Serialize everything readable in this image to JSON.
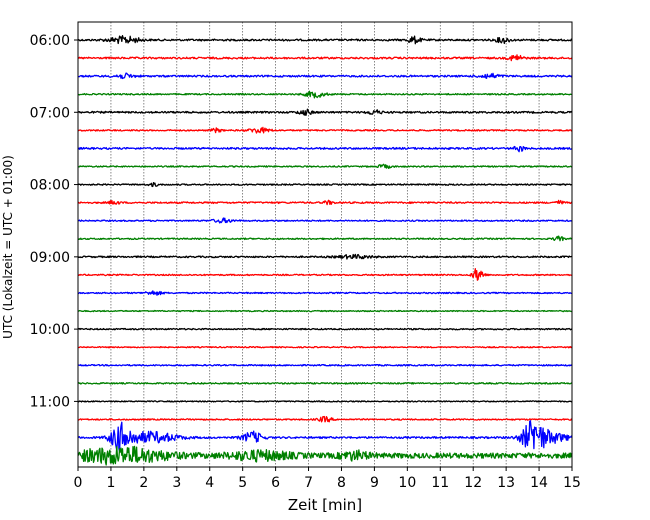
{
  "chart_data": {
    "type": "line",
    "title": "",
    "xlabel": "Zeit  [min]",
    "ylabel": "UTC (Lokalzeit = UTC + 01:00)",
    "xlim": [
      0,
      15
    ],
    "xticks": [
      0,
      1,
      2,
      3,
      4,
      5,
      6,
      7,
      8,
      9,
      10,
      11,
      12,
      13,
      14,
      15
    ],
    "grid": "vertical dotted",
    "ytick_labels": [
      "06:00",
      "07:00",
      "08:00",
      "09:00",
      "10:00",
      "11:00"
    ],
    "colors": [
      "#000000",
      "#ff0000",
      "#0000ff",
      "#008000"
    ],
    "trace_start_hour": 6.0,
    "trace_interval_min": 15,
    "traces": [
      {
        "label": "06:00",
        "color": "#000000",
        "amplitude": 0.4,
        "events": [
          {
            "t": 1.4,
            "amp": 1.6,
            "dur": 0.9
          },
          {
            "t": 10.2,
            "amp": 1.5,
            "dur": 0.4
          },
          {
            "t": 12.9,
            "amp": 1.3,
            "dur": 0.4
          }
        ]
      },
      {
        "label": "06:15",
        "color": "#ff0000",
        "amplitude": 0.4,
        "events": [
          {
            "t": 13.3,
            "amp": 1.5,
            "dur": 0.4
          }
        ]
      },
      {
        "label": "06:30",
        "color": "#0000ff",
        "amplitude": 0.4,
        "events": [
          {
            "t": 1.4,
            "amp": 1.0,
            "dur": 0.6
          },
          {
            "t": 12.5,
            "amp": 1.0,
            "dur": 0.6
          }
        ]
      },
      {
        "label": "06:45",
        "color": "#008000",
        "amplitude": 0.3,
        "events": [
          {
            "t": 7.2,
            "amp": 1.4,
            "dur": 0.6
          }
        ]
      },
      {
        "label": "07:00",
        "color": "#000000",
        "amplitude": 0.4,
        "events": [
          {
            "t": 6.9,
            "amp": 1.2,
            "dur": 0.4
          },
          {
            "t": 9.0,
            "amp": 1.0,
            "dur": 0.4
          }
        ]
      },
      {
        "label": "07:15",
        "color": "#ff0000",
        "amplitude": 0.3,
        "events": [
          {
            "t": 5.5,
            "amp": 1.2,
            "dur": 0.6
          },
          {
            "t": 4.2,
            "amp": 0.9,
            "dur": 0.3
          }
        ]
      },
      {
        "label": "07:30",
        "color": "#0000ff",
        "amplitude": 0.4,
        "events": [
          {
            "t": 13.4,
            "amp": 1.3,
            "dur": 0.3
          }
        ]
      },
      {
        "label": "07:45",
        "color": "#008000",
        "amplitude": 0.3,
        "events": [
          {
            "t": 9.3,
            "amp": 0.8,
            "dur": 0.4
          }
        ]
      },
      {
        "label": "08:00",
        "color": "#000000",
        "amplitude": 0.3,
        "events": [
          {
            "t": 2.3,
            "amp": 0.7,
            "dur": 0.3
          }
        ]
      },
      {
        "label": "08:15",
        "color": "#ff0000",
        "amplitude": 0.35,
        "events": [
          {
            "t": 1.1,
            "amp": 0.9,
            "dur": 0.3
          },
          {
            "t": 7.6,
            "amp": 0.8,
            "dur": 0.3
          },
          {
            "t": 14.6,
            "amp": 0.8,
            "dur": 0.3
          }
        ]
      },
      {
        "label": "08:30",
        "color": "#0000ff",
        "amplitude": 0.3,
        "events": [
          {
            "t": 4.4,
            "amp": 0.9,
            "dur": 0.6
          }
        ]
      },
      {
        "label": "08:45",
        "color": "#008000",
        "amplitude": 0.3,
        "events": [
          {
            "t": 14.6,
            "amp": 1.0,
            "dur": 0.3
          }
        ]
      },
      {
        "label": "09:00",
        "color": "#000000",
        "amplitude": 0.35,
        "events": [
          {
            "t": 8.4,
            "amp": 0.8,
            "dur": 1.0
          }
        ]
      },
      {
        "label": "09:15",
        "color": "#ff0000",
        "amplitude": 0.3,
        "events": [
          {
            "t": 12.15,
            "amp": 3.5,
            "dur": 0.3
          }
        ]
      },
      {
        "label": "09:30",
        "color": "#0000ff",
        "amplitude": 0.3,
        "events": [
          {
            "t": 2.3,
            "amp": 0.9,
            "dur": 0.5
          }
        ]
      },
      {
        "label": "09:45",
        "color": "#008000",
        "amplitude": 0.25,
        "events": []
      },
      {
        "label": "10:00",
        "color": "#000000",
        "amplitude": 0.3,
        "events": []
      },
      {
        "label": "10:15",
        "color": "#ff0000",
        "amplitude": 0.25,
        "events": []
      },
      {
        "label": "10:30",
        "color": "#0000ff",
        "amplitude": 0.3,
        "events": []
      },
      {
        "label": "10:45",
        "color": "#008000",
        "amplitude": 0.3,
        "events": []
      },
      {
        "label": "11:00",
        "color": "#000000",
        "amplitude": 0.25,
        "events": []
      },
      {
        "label": "11:15",
        "color": "#ff0000",
        "amplitude": 0.3,
        "events": [
          {
            "t": 7.5,
            "amp": 1.2,
            "dur": 0.4
          }
        ]
      },
      {
        "label": "11:30",
        "color": "#0000ff",
        "amplitude": 0.4,
        "events": [
          {
            "t": 1.3,
            "amp": 6.0,
            "dur": 0.6
          },
          {
            "t": 2.2,
            "amp": 2.5,
            "dur": 1.6
          },
          {
            "t": 5.3,
            "amp": 2.5,
            "dur": 0.6
          },
          {
            "t": 13.8,
            "amp": 6.0,
            "dur": 0.6
          },
          {
            "t": 14.2,
            "amp": 3.0,
            "dur": 1.2
          }
        ]
      },
      {
        "label": "11:45",
        "color": "#008000",
        "amplitude": 1.2,
        "events": [
          {
            "t": 1.3,
            "amp": 3.5,
            "dur": 2.6
          },
          {
            "t": 5.5,
            "amp": 1.8,
            "dur": 1.8
          },
          {
            "t": 8.4,
            "amp": 1.6,
            "dur": 0.8
          }
        ]
      }
    ]
  }
}
